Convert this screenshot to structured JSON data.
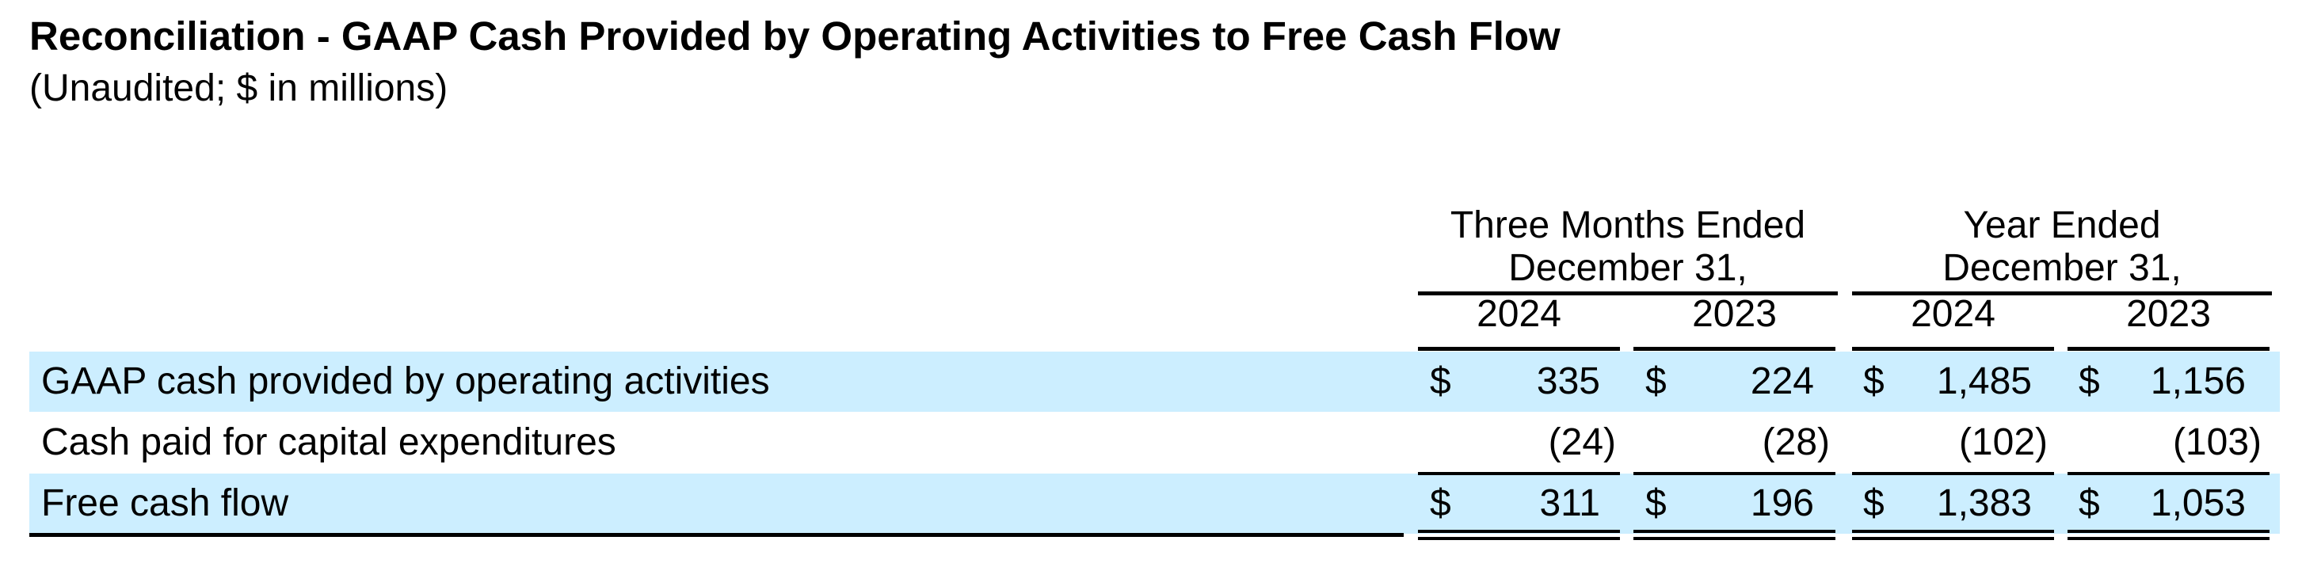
{
  "title": "Reconciliation - GAAP Cash Provided by Operating Activities to Free Cash Flow",
  "subtitle": "(Unaudited; $ in millions)",
  "column_groups": [
    {
      "line1": "Three Months Ended",
      "line2": "December 31,"
    },
    {
      "line1": "Year Ended",
      "line2": "December 31,"
    }
  ],
  "years": [
    "2024",
    "2023",
    "2024",
    "2023"
  ],
  "rows": [
    {
      "label": "GAAP cash provided by operating activities",
      "dollar": "$",
      "values": [
        "335",
        "224",
        "1,485",
        "1,156"
      ]
    },
    {
      "label": "Cash paid for capital expenditures",
      "dollar": "",
      "values": [
        "(24)",
        "(28)",
        "(102)",
        "(103)"
      ]
    },
    {
      "label": "Free cash flow",
      "dollar": "$",
      "values": [
        "311",
        "196",
        "1,383",
        "1,053"
      ]
    }
  ],
  "colors": {
    "row_highlight": "#cceeff",
    "text": "#000000"
  }
}
